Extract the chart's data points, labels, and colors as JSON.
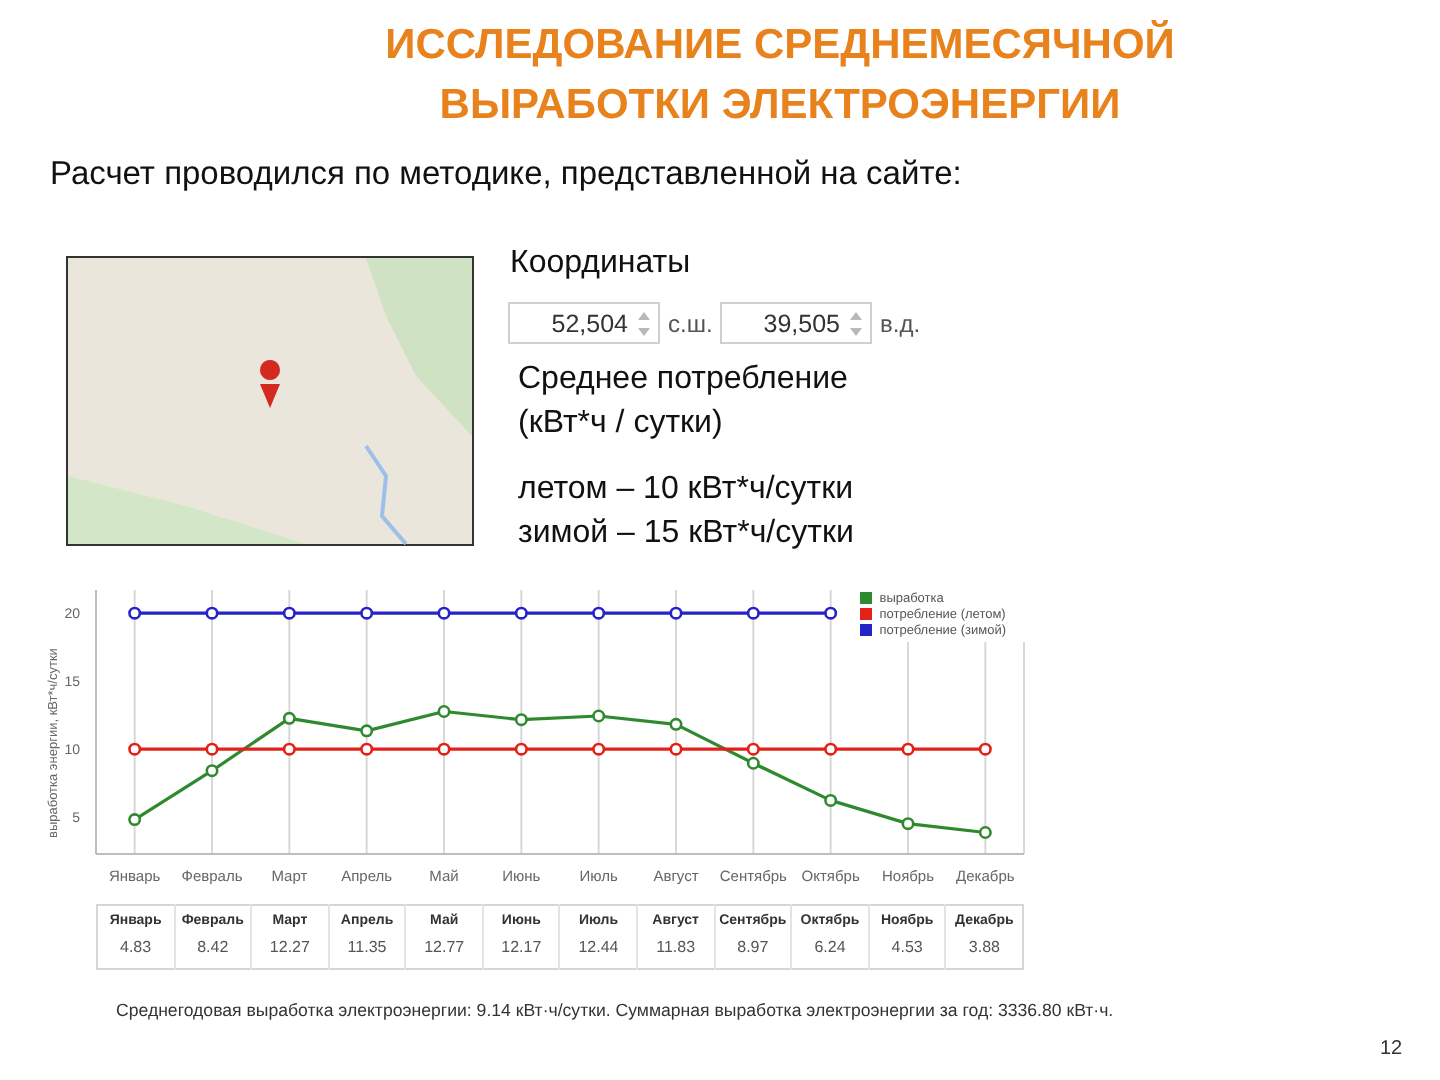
{
  "chart_data": {
    "type": "line",
    "title": "ИССЛЕДОВАНИЕ СРЕДНЕМЕСЯЧНОЙ ВЫРАБОТКИ ЭЛЕКТРОЭНЕРГИИ",
    "ylabel": "выработка энергии, кВт*ч/сутки",
    "categories": [
      "Январь",
      "Февраль",
      "Март",
      "Апрель",
      "Май",
      "Июнь",
      "Июль",
      "Август",
      "Сентябрь",
      "Октябрь",
      "Ноябрь",
      "Декабрь"
    ],
    "series": [
      {
        "name": "выработка",
        "color": "#2f8a2f",
        "values": [
          4.83,
          8.42,
          12.27,
          11.35,
          12.77,
          12.17,
          12.44,
          11.83,
          8.97,
          6.24,
          4.53,
          3.88
        ],
        "value_labels": [
          "4.83",
          "8.42",
          "12.27",
          "11.35",
          "12.77",
          "12.17",
          "12.44",
          "11.83",
          "8.97",
          "6.24",
          "4.53",
          "3.88"
        ]
      },
      {
        "name": "потребление (летом)",
        "color": "#e32119",
        "values": [
          10,
          10,
          10,
          10,
          10,
          10,
          10,
          10,
          10,
          10,
          10,
          10
        ]
      },
      {
        "name": "потребление (зимой)",
        "color": "#2424c8",
        "values": [
          20,
          20,
          20,
          20,
          20,
          20,
          20,
          20,
          20,
          20,
          null,
          null
        ]
      }
    ],
    "ylim": [
      2.3,
      21.7
    ],
    "yticks": [
      5,
      10,
      15,
      20
    ],
    "grid": "x",
    "legend": "top right",
    "marker": "circle",
    "annotations": [
      "Расчет проводился по методике, представленной на сайте:",
      "Координаты",
      "52,504",
      "с.ш.",
      "39,505",
      "в.д.",
      "Среднее потребление",
      "(кВт*ч / сутки)",
      "летом – 10 кВт*ч/сутки",
      "зимой – 15 кВт*ч/сутки",
      "Среднегодовая выработка электроэнергии: 9.14 кВт·ч/сутки. Суммарная выработка электроэнергии за год: 3336.80 кВт·ч.",
      "12"
    ]
  }
}
